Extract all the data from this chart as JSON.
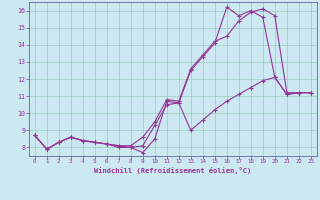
{
  "xlabel": "Windchill (Refroidissement éolien,°C)",
  "background_color": "#cce8f0",
  "grid_color": "#99ccbb",
  "line_color": "#993399",
  "spine_color": "#666699",
  "xlim": [
    -0.5,
    23.5
  ],
  "ylim": [
    7.5,
    16.5
  ],
  "xticks": [
    0,
    1,
    2,
    3,
    4,
    5,
    6,
    7,
    8,
    9,
    10,
    11,
    12,
    13,
    14,
    15,
    16,
    17,
    18,
    19,
    20,
    21,
    22,
    23
  ],
  "yticks": [
    8,
    9,
    10,
    11,
    12,
    13,
    14,
    15,
    16
  ],
  "line1_x": [
    0,
    1,
    2,
    3,
    4,
    5,
    6,
    7,
    8,
    9,
    10,
    11,
    12,
    13,
    14,
    15,
    16,
    17,
    18,
    19,
    20,
    21,
    22,
    23
  ],
  "line1_y": [
    8.7,
    7.9,
    8.3,
    8.6,
    8.4,
    8.3,
    8.2,
    8.1,
    8.0,
    7.7,
    8.5,
    10.7,
    10.6,
    12.5,
    13.3,
    14.1,
    16.2,
    15.7,
    16.0,
    15.6,
    12.1,
    11.1,
    11.2,
    11.2
  ],
  "line2_x": [
    0,
    1,
    2,
    3,
    4,
    5,
    6,
    7,
    8,
    9,
    10,
    11,
    12,
    13,
    14,
    15,
    16,
    17,
    18,
    19,
    20,
    21,
    22,
    23
  ],
  "line2_y": [
    8.7,
    7.9,
    8.3,
    8.6,
    8.4,
    8.3,
    8.2,
    8.1,
    8.1,
    8.6,
    9.5,
    10.8,
    10.7,
    12.6,
    13.4,
    14.2,
    14.5,
    15.4,
    15.9,
    16.1,
    15.7,
    11.2,
    11.2,
    11.2
  ],
  "line3_x": [
    0,
    1,
    2,
    3,
    4,
    5,
    6,
    7,
    8,
    9,
    10,
    11,
    12,
    13,
    14,
    15,
    16,
    17,
    18,
    19,
    20,
    21,
    22,
    23
  ],
  "line3_y": [
    8.7,
    7.9,
    8.3,
    8.6,
    8.4,
    8.3,
    8.2,
    8.0,
    8.0,
    8.1,
    9.3,
    10.5,
    10.6,
    9.0,
    9.6,
    10.2,
    10.7,
    11.1,
    11.5,
    11.9,
    12.1,
    11.1,
    11.2,
    11.2
  ]
}
